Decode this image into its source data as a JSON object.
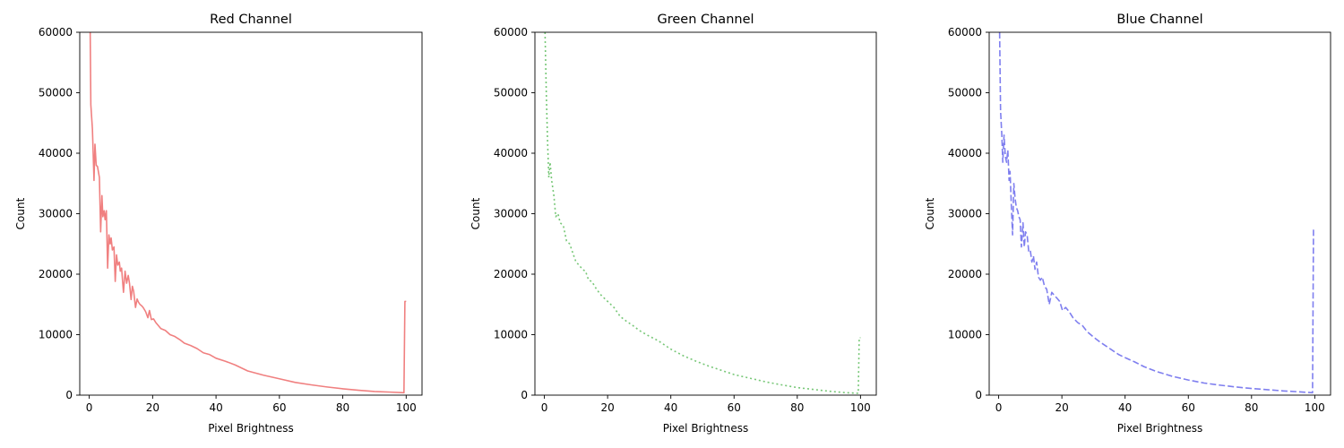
{
  "chart_data": [
    {
      "type": "line",
      "title": "Red Channel",
      "xlabel": "Pixel Brightness",
      "ylabel": "Count",
      "xlim": [
        -3,
        105
      ],
      "ylim": [
        0,
        60000
      ],
      "xticks": [
        "0",
        "20",
        "40",
        "60",
        "80",
        "100"
      ],
      "yticks": [
        "0",
        "10000",
        "20000",
        "30000",
        "40000",
        "50000",
        "60000"
      ],
      "grid": false,
      "color": "#f08080",
      "line_style": "solid",
      "series": [
        {
          "x": [
            0.3,
            0.5,
            1.0,
            1.5,
            1.8,
            2.2,
            2.6,
            3.2,
            3.6,
            4.0,
            4.3,
            4.7,
            5.0,
            5.4,
            5.8,
            6.2,
            6.6,
            6.9,
            7.3,
            7.8,
            8.2,
            8.6,
            9.0,
            9.5,
            9.8,
            10.2,
            10.8,
            11.3,
            11.8,
            12.3,
            12.7,
            13.2,
            13.6,
            14.0,
            14.6,
            15.1,
            15.5,
            16.0,
            16.5,
            17.0,
            17.8,
            18.5,
            19.0,
            19.6,
            20.3,
            21.0,
            21.8,
            22.6,
            24,
            25.5,
            27,
            28.5,
            30,
            32,
            34,
            36,
            38,
            40,
            43,
            46,
            50,
            55,
            60,
            65,
            70,
            75,
            80,
            85,
            90,
            95,
            99.3,
            99.6,
            100
          ],
          "y": [
            60000,
            48000,
            44000,
            35500,
            41500,
            38000,
            37800,
            36000,
            27000,
            33000,
            29500,
            30500,
            29000,
            30500,
            21000,
            26500,
            25000,
            26000,
            24000,
            24500,
            18800,
            23200,
            21500,
            22000,
            20500,
            21000,
            17000,
            20500,
            18500,
            19800,
            18500,
            15800,
            18000,
            17200,
            14500,
            15900,
            15400,
            15000,
            14800,
            14500,
            13800,
            12800,
            14000,
            12500,
            12600,
            12000,
            11500,
            11000,
            10700,
            10000,
            9700,
            9200,
            8600,
            8200,
            7700,
            7000,
            6700,
            6100,
            5600,
            5000,
            4000,
            3300,
            2700,
            2100,
            1700,
            1350,
            1050,
            800,
            600,
            500,
            400,
            15500,
            15500
          ]
        }
      ]
    },
    {
      "type": "line",
      "title": "Green Channel",
      "xlabel": "Pixel Brightness",
      "ylabel": "Count",
      "xlim": [
        -3,
        105
      ],
      "ylim": [
        0,
        60000
      ],
      "xticks": [
        "0",
        "20",
        "40",
        "60",
        "80",
        "100"
      ],
      "yticks": [
        "0",
        "10000",
        "20000",
        "30000",
        "40000",
        "50000",
        "60000"
      ],
      "grid": false,
      "color": "#77c777",
      "line_style": "dotted",
      "series": [
        {
          "x": [
            0.2,
            0.6,
            1.0,
            1.4,
            1.8,
            2.3,
            3.0,
            3.6,
            4.3,
            5.0,
            6.0,
            7.0,
            8.0,
            9.0,
            10.0,
            11.0,
            12.0,
            13.0,
            14.0,
            15.0,
            16.5,
            18,
            20,
            22,
            24,
            26,
            28,
            30,
            33,
            36,
            40,
            44,
            48,
            52,
            56,
            60,
            65,
            70,
            75,
            80,
            85,
            90,
            95,
            99.3,
            99.6,
            100
          ],
          "y": [
            60000,
            50000,
            42000,
            36000,
            38500,
            35500,
            33000,
            29500,
            30000,
            28500,
            28000,
            25500,
            25000,
            23500,
            22000,
            21500,
            20800,
            20500,
            19000,
            18800,
            17500,
            16500,
            15500,
            14500,
            13000,
            12200,
            11500,
            10700,
            9800,
            9000,
            7600,
            6500,
            5600,
            4800,
            4100,
            3400,
            2800,
            2200,
            1700,
            1250,
            950,
            650,
            420,
            300,
            9500,
            9500
          ]
        }
      ]
    },
    {
      "type": "line",
      "title": "Blue Channel",
      "xlabel": "Pixel Brightness",
      "ylabel": "Count",
      "xlim": [
        -3,
        105
      ],
      "ylim": [
        0,
        60000
      ],
      "xticks": [
        "0",
        "20",
        "40",
        "60",
        "80",
        "100"
      ],
      "yticks": [
        "0",
        "10000",
        "20000",
        "30000",
        "40000",
        "50000",
        "60000"
      ],
      "grid": false,
      "color": "#7f7fef",
      "line_style": "dashed",
      "series": [
        {
          "x": [
            0.3,
            0.6,
            1.0,
            1.3,
            1.7,
            2.1,
            2.5,
            2.9,
            3.3,
            3.6,
            4.0,
            4.4,
            4.8,
            5.2,
            5.6,
            6.0,
            6.4,
            6.8,
            7.2,
            7.7,
            8.1,
            8.5,
            9.0,
            9.5,
            10.0,
            10.5,
            11.0,
            11.5,
            12.0,
            12.6,
            13.2,
            13.8,
            14.5,
            15.2,
            16.0,
            16.8,
            17.6,
            18.5,
            19.3,
            20.2,
            21.2,
            22.3,
            23.5,
            25,
            26.5,
            28,
            30,
            32,
            34,
            36,
            38,
            40,
            43,
            46,
            50,
            55,
            60,
            65,
            70,
            75,
            80,
            85,
            90,
            95,
            99.3,
            99.6,
            100
          ],
          "y": [
            60000,
            47000,
            43000,
            38500,
            43000,
            39500,
            38500,
            40500,
            35500,
            37000,
            31500,
            26500,
            35000,
            32500,
            31000,
            30500,
            29500,
            29000,
            24500,
            28500,
            24500,
            27000,
            26500,
            23800,
            24000,
            22000,
            23000,
            20800,
            22000,
            19500,
            19000,
            19500,
            18000,
            17500,
            15000,
            17000,
            16500,
            16000,
            15500,
            14000,
            14500,
            13800,
            12800,
            12000,
            11500,
            10500,
            9600,
            8800,
            8100,
            7400,
            6700,
            6200,
            5500,
            4700,
            3900,
            3100,
            2500,
            2000,
            1650,
            1350,
            1100,
            900,
            700,
            550,
            400,
            27500,
            27500
          ]
        }
      ]
    }
  ]
}
